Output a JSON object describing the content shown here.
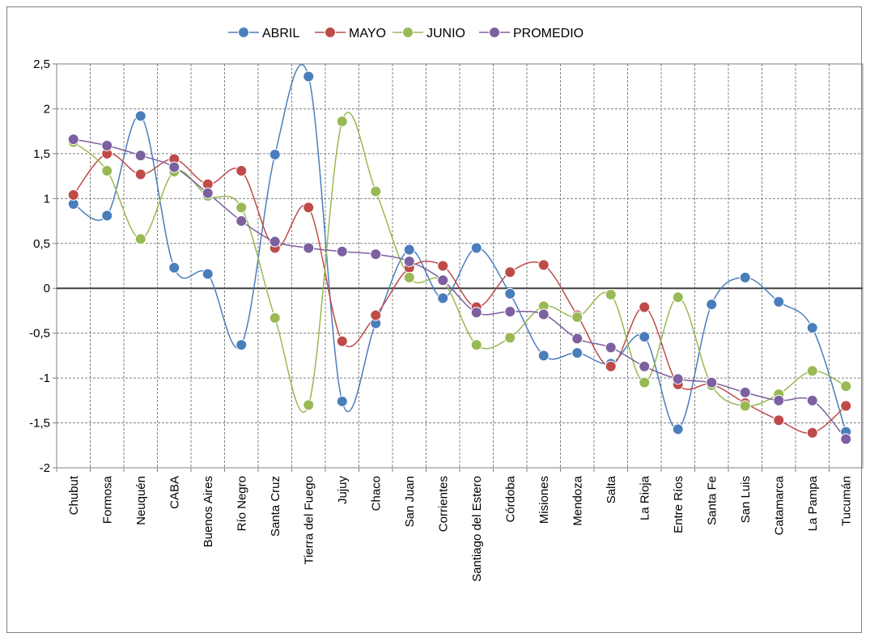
{
  "chart_data": {
    "type": "line",
    "title": "",
    "xlabel": "",
    "ylabel": "",
    "ylim": [
      -2,
      2.5
    ],
    "y_ticks": [
      "-2",
      "-1,5",
      "-1",
      "-0,5",
      "0",
      "0,5",
      "1",
      "1,5",
      "2",
      "2,5"
    ],
    "y_tick_values": [
      -2,
      -1.5,
      -1,
      -0.5,
      0,
      0.5,
      1,
      1.5,
      2,
      2.5
    ],
    "grid": true,
    "legend_position": "top",
    "categories": [
      "Chubut",
      "Formosa",
      "Neuquén",
      "CABA",
      "Buenos Aires",
      "Río Negro",
      "Santa Cruz",
      "Tierra del Fuego",
      "Jujuy",
      "Chaco",
      "San Juan",
      "Corrientes",
      "Santiago del Estero",
      "Córdoba",
      "Misiones",
      "Mendoza",
      "Salta",
      "La Rioja",
      "Entre Ríos",
      "Santa Fe",
      "San Luis",
      "Catamarca",
      "La Pampa",
      "Tucumán"
    ],
    "series": [
      {
        "name": "ABRIL",
        "color": "#4a7ebb",
        "values": [
          0.94,
          0.81,
          1.92,
          0.23,
          0.16,
          -0.63,
          1.49,
          2.36,
          -1.26,
          -0.39,
          0.43,
          -0.11,
          0.45,
          -0.06,
          -0.75,
          -0.72,
          -0.84,
          -0.54,
          -1.57,
          -0.18,
          0.12,
          -0.15,
          -0.44,
          -1.6
        ]
      },
      {
        "name": "MAYO",
        "color": "#be4b48",
        "values": [
          1.04,
          1.5,
          1.27,
          1.44,
          1.16,
          1.31,
          0.45,
          0.9,
          -0.59,
          -0.3,
          0.23,
          0.25,
          -0.21,
          0.18,
          0.26,
          -0.3,
          -0.87,
          -0.21,
          -1.07,
          -1.07,
          -1.28,
          -1.47,
          -1.61,
          -1.31
        ]
      },
      {
        "name": "JUNIO",
        "color": "#98b954",
        "values": [
          1.63,
          1.31,
          0.55,
          1.3,
          1.03,
          0.9,
          -0.33,
          -1.3,
          1.86,
          1.08,
          0.12,
          0.08,
          -0.63,
          -0.55,
          -0.2,
          -0.32,
          -0.07,
          -1.05,
          -0.1,
          -1.08,
          -1.31,
          -1.18,
          -0.92,
          -1.09
        ]
      },
      {
        "name": "PROMEDIO",
        "color": "#7d60a0",
        "values": [
          1.66,
          1.59,
          1.48,
          1.35,
          1.06,
          0.75,
          0.52,
          0.45,
          0.41,
          0.38,
          0.3,
          0.09,
          -0.27,
          -0.26,
          -0.29,
          -0.56,
          -0.66,
          -0.87,
          -1.01,
          -1.05,
          -1.16,
          -1.25,
          -1.25,
          -1.68
        ]
      }
    ]
  }
}
